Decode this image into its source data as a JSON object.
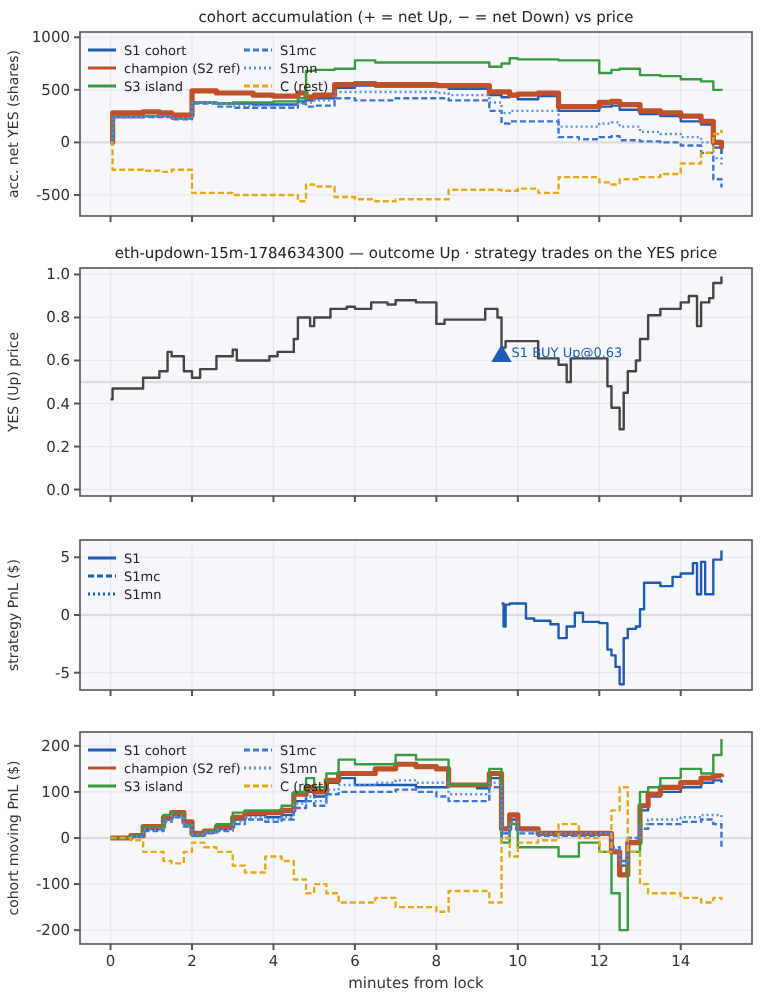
{
  "chart_data": [
    {
      "type": "step",
      "title": "cohort accumulation (+ = net Up, − = net Down) vs price",
      "ylabel": "acc. net YES (shares)",
      "xlim": [
        -0.75,
        15.75
      ],
      "xticks": [
        {
          "value": 0,
          "label": null
        },
        {
          "value": 2,
          "label": null
        },
        {
          "value": 4,
          "label": null
        },
        {
          "value": 6,
          "label": null
        },
        {
          "value": 8,
          "label": null
        },
        {
          "value": 10,
          "label": null
        },
        {
          "value": 12,
          "label": null
        },
        {
          "value": 14,
          "label": null
        }
      ],
      "ylim": [
        -700,
        1050
      ],
      "yticks": [
        -500,
        0,
        500,
        1000
      ],
      "tick_labels": "y",
      "grid": true,
      "legend": "top left",
      "ref_lines": [
        {
          "axis": "y",
          "value": 0,
          "color": "#dddddd"
        }
      ],
      "x": [
        0,
        0.05,
        0.8,
        1.2,
        1.5,
        2,
        2.6,
        3,
        3.5,
        4,
        4.6,
        4.8,
        5,
        5.5,
        6,
        6.5,
        7,
        7.5,
        8,
        8.3,
        9,
        9.3,
        9.6,
        9.8,
        10,
        10.5,
        11,
        11.5,
        12,
        12.3,
        12.5,
        13,
        13.5,
        14,
        14.5,
        14.8,
        15
      ],
      "series": [
        {
          "name": "S1 cohort",
          "color": "#1f5bb5",
          "line_style": "solid",
          "values": [
            0,
            240,
            250,
            250,
            230,
            380,
            370,
            370,
            360,
            360,
            390,
            400,
            420,
            520,
            540,
            530,
            530,
            530,
            530,
            510,
            510,
            450,
            430,
            440,
            410,
            440,
            300,
            300,
            340,
            350,
            310,
            270,
            250,
            200,
            170,
            -50,
            -110
          ]
        },
        {
          "name": "champion (S2 ref)",
          "color": "#c0502a",
          "line_style": "solid",
          "values": [
            0,
            280,
            290,
            280,
            260,
            490,
            470,
            470,
            450,
            440,
            470,
            430,
            450,
            550,
            560,
            550,
            550,
            550,
            540,
            540,
            540,
            480,
            480,
            450,
            460,
            470,
            340,
            340,
            380,
            390,
            360,
            300,
            280,
            250,
            200,
            0,
            -60
          ]
        },
        {
          "name": "S3 island",
          "color": "#3a9a40",
          "line_style": "solid",
          "values": [
            0,
            250,
            250,
            250,
            230,
            380,
            370,
            380,
            380,
            390,
            420,
            680,
            690,
            700,
            780,
            760,
            760,
            760,
            760,
            760,
            760,
            720,
            750,
            800,
            790,
            790,
            780,
            780,
            660,
            690,
            700,
            640,
            630,
            600,
            580,
            500,
            510
          ]
        },
        {
          "name": "S1mc",
          "color": "#3f74cc",
          "line_style": "dashed",
          "values": [
            0,
            240,
            240,
            240,
            220,
            370,
            340,
            330,
            330,
            330,
            370,
            340,
            350,
            420,
            400,
            400,
            420,
            420,
            420,
            400,
            400,
            300,
            180,
            200,
            200,
            200,
            50,
            30,
            50,
            60,
            20,
            10,
            0,
            -30,
            -100,
            -350,
            -430
          ]
        },
        {
          "name": "S1mn",
          "color": "#5b8fe0",
          "line_style": "dotted",
          "values": [
            0,
            240,
            250,
            250,
            230,
            380,
            370,
            350,
            350,
            350,
            380,
            380,
            400,
            480,
            480,
            480,
            480,
            480,
            470,
            450,
            450,
            380,
            280,
            300,
            300,
            300,
            150,
            150,
            180,
            190,
            150,
            100,
            80,
            50,
            0,
            -150,
            -230
          ]
        },
        {
          "name": "C (rest)",
          "color": "#e6a817",
          "line_style": "dashed",
          "values": [
            0,
            -260,
            -270,
            -280,
            -260,
            -480,
            -480,
            -500,
            -500,
            -500,
            -560,
            -400,
            -420,
            -520,
            -540,
            -560,
            -540,
            -540,
            -540,
            -450,
            -450,
            -450,
            -460,
            -460,
            -440,
            -480,
            -330,
            -330,
            -380,
            -400,
            -350,
            -330,
            -300,
            -200,
            -100,
            80,
            120
          ]
        }
      ]
    },
    {
      "type": "step",
      "title": "eth-updown-15m-1784634300 — outcome Up · strategy trades on the YES price",
      "ylabel": "YES (Up) price",
      "xlim": [
        -0.75,
        15.75
      ],
      "xticks": [
        {
          "value": 0,
          "label": null
        },
        {
          "value": 2,
          "label": null
        },
        {
          "value": 4,
          "label": null
        },
        {
          "value": 6,
          "label": null
        },
        {
          "value": 8,
          "label": null
        },
        {
          "value": 10,
          "label": null
        },
        {
          "value": 12,
          "label": null
        },
        {
          "value": 14,
          "label": null
        }
      ],
      "ylim": [
        -0.03,
        1.03
      ],
      "yticks": [
        {
          "value": 0,
          "label": "0.0"
        },
        0.2,
        0.4,
        0.6,
        0.8,
        {
          "value": 1,
          "label": "1.0"
        }
      ],
      "tick_labels": "y",
      "grid": true,
      "ref_lines": [
        {
          "axis": "y",
          "value": 0.5,
          "color": "#dddddd"
        }
      ],
      "annotations": [
        {
          "text": "S1 BUY Up@0.63",
          "x": 9.6,
          "y": 0.63
        }
      ],
      "series": [
        {
          "color": "#444444",
          "line_style": "solid",
          "x": [
            0,
            0.05,
            0.3,
            0.8,
            1.2,
            1.4,
            1.5,
            1.8,
            2,
            2.2,
            2.6,
            3,
            3.1,
            3.5,
            3.9,
            4.1,
            4.5,
            4.6,
            4.9,
            5,
            5.4,
            5.8,
            6,
            6.4,
            6.8,
            7,
            7.5,
            8,
            8.2,
            8.4,
            9,
            9.2,
            9.5,
            9.6,
            9.7,
            10,
            10.5,
            11,
            11.2,
            11.3,
            11.5,
            12,
            12.2,
            12.3,
            12.5,
            12.6,
            12.7,
            12.9,
            13,
            13.2,
            13.5,
            14,
            14.2,
            14.4,
            14.5,
            14.7,
            14.8,
            15
          ],
          "values": [
            0.42,
            0.47,
            0.47,
            0.52,
            0.55,
            0.64,
            0.62,
            0.55,
            0.52,
            0.56,
            0.62,
            0.65,
            0.6,
            0.6,
            0.62,
            0.64,
            0.7,
            0.8,
            0.76,
            0.8,
            0.84,
            0.85,
            0.84,
            0.87,
            0.86,
            0.88,
            0.87,
            0.77,
            0.79,
            0.79,
            0.79,
            0.84,
            0.8,
            0.66,
            0.69,
            0.69,
            0.61,
            0.58,
            0.5,
            0.61,
            0.61,
            0.61,
            0.48,
            0.38,
            0.28,
            0.45,
            0.55,
            0.6,
            0.7,
            0.81,
            0.84,
            0.87,
            0.9,
            0.76,
            0.87,
            0.89,
            0.96,
            0.99
          ]
        },
        {
          "type": "scatter",
          "marker": "triangle",
          "color": "#1f5bb5",
          "x": [
            9.6
          ],
          "values": [
            0.62
          ]
        }
      ]
    },
    {
      "type": "step",
      "ylabel": "strategy PnL ($)",
      "xlim": [
        -0.75,
        15.75
      ],
      "xticks": [
        {
          "value": 0,
          "label": null
        },
        {
          "value": 2,
          "label": null
        },
        {
          "value": 4,
          "label": null
        },
        {
          "value": 6,
          "label": null
        },
        {
          "value": 8,
          "label": null
        },
        {
          "value": 10,
          "label": null
        },
        {
          "value": 12,
          "label": null
        },
        {
          "value": 14,
          "label": null
        }
      ],
      "ylim": [
        -6.5,
        6.5
      ],
      "yticks": [
        -5,
        0,
        5
      ],
      "tick_labels": "y",
      "grid": true,
      "legend": "top left",
      "ref_lines": [
        {
          "axis": "y",
          "value": 0,
          "color": "#dddddd"
        }
      ],
      "x": [
        9.6,
        9.65,
        9.7,
        9.8,
        10.2,
        10.4,
        10.8,
        11,
        11.2,
        11.4,
        11.6,
        12,
        12.2,
        12.3,
        12.4,
        12.5,
        12.6,
        12.7,
        12.9,
        13,
        13.1,
        13.5,
        13.8,
        14,
        14.3,
        14.4,
        14.5,
        14.6,
        14.8,
        15
      ],
      "series": [
        {
          "name": "S1",
          "color": "#1f5bb5",
          "line_style": "solid",
          "values": [
            1,
            -1,
            0.9,
            1,
            -0.3,
            -0.5,
            -0.8,
            -2,
            -1,
            0.2,
            -0.6,
            -0.7,
            -3,
            -3.5,
            -4.5,
            -6,
            -2,
            -1.2,
            -1,
            0.5,
            2.8,
            2.5,
            3.3,
            3.6,
            4.5,
            1.8,
            4.6,
            1.8,
            4.8,
            5.6
          ]
        },
        {
          "name": "S1mc",
          "color": "#1f5bb5",
          "line_style": "dashed",
          "values": [
            null,
            null,
            null,
            null,
            null,
            null,
            null,
            null,
            null,
            null,
            null,
            null,
            null,
            null,
            null,
            null,
            null,
            null,
            null,
            null,
            null,
            null,
            null,
            null,
            null,
            null,
            null,
            null,
            null,
            null
          ]
        },
        {
          "name": "S1mn",
          "color": "#1f5bb5",
          "line_style": "dotted",
          "values": [
            null,
            null,
            null,
            null,
            null,
            null,
            null,
            null,
            null,
            null,
            null,
            null,
            null,
            null,
            null,
            null,
            null,
            null,
            null,
            null,
            null,
            null,
            null,
            null,
            null,
            null,
            null,
            null,
            null,
            null
          ]
        }
      ]
    },
    {
      "type": "step",
      "ylabel": "cohort moving PnL ($)",
      "xlabel": "minutes from lock",
      "xlim": [
        -0.75,
        15.75
      ],
      "xticks": [
        0,
        2,
        4,
        6,
        8,
        10,
        12,
        14
      ],
      "ylim": [
        -230,
        230
      ],
      "yticks": [
        -200,
        -100,
        0,
        100,
        200
      ],
      "grid": true,
      "legend": "top left",
      "ref_lines": [
        {
          "axis": "y",
          "value": 0,
          "color": "#dddddd"
        }
      ],
      "x": [
        0,
        0.5,
        0.8,
        1.3,
        1.5,
        1.8,
        2,
        2.3,
        2.6,
        3,
        3.3,
        3.8,
        4.2,
        4.5,
        4.8,
        5,
        5.3,
        5.6,
        6,
        6.5,
        7,
        7.5,
        8,
        8.3,
        9,
        9.3,
        9.6,
        9.8,
        10,
        10.5,
        11,
        11.5,
        12,
        12.3,
        12.5,
        12.7,
        13,
        13.2,
        13.5,
        14,
        14.5,
        14.8,
        15
      ],
      "series": [
        {
          "name": "S1 cohort",
          "color": "#1f5bb5",
          "line_style": "solid",
          "values": [
            0,
            5,
            20,
            40,
            50,
            30,
            10,
            15,
            20,
            40,
            50,
            45,
            50,
            80,
            100,
            90,
            120,
            130,
            115,
            115,
            115,
            110,
            110,
            115,
            108,
            130,
            10,
            40,
            20,
            10,
            10,
            10,
            10,
            -30,
            -60,
            -10,
            60,
            90,
            100,
            110,
            120,
            125,
            120
          ]
        },
        {
          "name": "champion (S2 ref)",
          "color": "#c0502a",
          "line_style": "solid",
          "values": [
            0,
            5,
            25,
            45,
            55,
            35,
            10,
            15,
            25,
            45,
            55,
            55,
            60,
            95,
            110,
            100,
            125,
            140,
            140,
            150,
            160,
            155,
            150,
            115,
            115,
            140,
            20,
            50,
            20,
            10,
            10,
            10,
            10,
            -30,
            -80,
            -10,
            70,
            95,
            110,
            120,
            130,
            135,
            133
          ]
        },
        {
          "name": "S3 island",
          "color": "#3a9a40",
          "line_style": "solid",
          "values": [
            0,
            5,
            25,
            50,
            55,
            30,
            5,
            15,
            30,
            55,
            60,
            60,
            70,
            100,
            130,
            110,
            140,
            170,
            160,
            160,
            180,
            170,
            170,
            115,
            115,
            150,
            -10,
            30,
            -20,
            -20,
            -40,
            -10,
            -30,
            -120,
            -200,
            -30,
            100,
            110,
            130,
            150,
            140,
            180,
            215
          ]
        },
        {
          "name": "S1mc",
          "color": "#3f74cc",
          "line_style": "dashed",
          "values": [
            null,
            3,
            15,
            35,
            45,
            25,
            5,
            10,
            15,
            30,
            40,
            35,
            40,
            65,
            80,
            70,
            95,
            100,
            100,
            100,
            105,
            100,
            90,
            80,
            80,
            110,
            0,
            20,
            10,
            5,
            5,
            5,
            10,
            -20,
            -50,
            0,
            20,
            30,
            30,
            35,
            40,
            30,
            -20
          ]
        },
        {
          "name": "S1mn",
          "color": "#5b8fe0",
          "line_style": "dotted",
          "values": [
            null,
            3,
            18,
            38,
            48,
            28,
            8,
            12,
            18,
            35,
            45,
            40,
            45,
            75,
            90,
            80,
            105,
            115,
            115,
            120,
            125,
            120,
            120,
            95,
            95,
            120,
            10,
            35,
            15,
            10,
            10,
            10,
            10,
            -25,
            -55,
            0,
            30,
            40,
            40,
            45,
            50,
            50,
            38
          ]
        },
        {
          "name": "C (rest)",
          "color": "#e6a817",
          "line_style": "dashed",
          "values": [
            0,
            -5,
            -30,
            -50,
            -55,
            -30,
            -10,
            -20,
            -30,
            -60,
            -75,
            -40,
            -50,
            -90,
            -120,
            -100,
            -120,
            -140,
            -140,
            -130,
            -150,
            -150,
            -160,
            -115,
            -115,
            -140,
            0,
            -40,
            -10,
            -5,
            30,
            0,
            -30,
            60,
            110,
            -30,
            -100,
            -120,
            -120,
            -130,
            -140,
            -130,
            -135
          ]
        }
      ]
    }
  ]
}
